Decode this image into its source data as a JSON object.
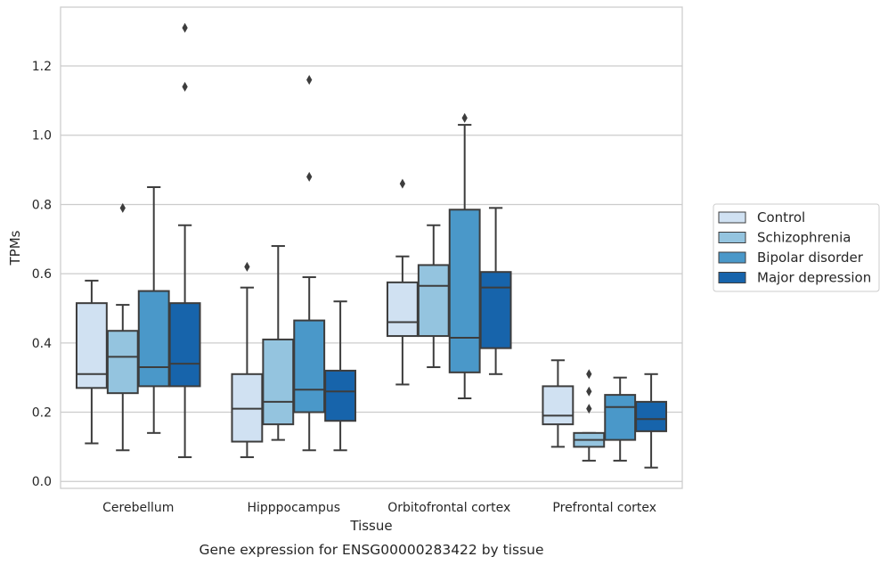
{
  "chart_data": {
    "type": "box",
    "xlabel": "Tissue",
    "ylabel": "TPMs",
    "caption": "Gene expression for ENSG00000283422 by tissue",
    "ylim": [
      -0.02,
      1.37
    ],
    "yticks": [
      0.0,
      0.2,
      0.4,
      0.6,
      0.8,
      1.0,
      1.2
    ],
    "ytick_labels": [
      "0.0",
      "0.2",
      "0.4",
      "0.6",
      "0.8",
      "1.0",
      "1.2"
    ],
    "grid": "horizontal",
    "legend_position": "right",
    "categories": [
      "Cerebellum",
      "Hipppocampus",
      "Orbitofrontal cortex",
      "Prefrontal cortex"
    ],
    "series": [
      {
        "name": "Control",
        "color": "#d0e1f2",
        "boxes": [
          {
            "whislo": 0.11,
            "q1": 0.27,
            "med": 0.31,
            "q3": 0.515,
            "whishi": 0.58,
            "fliers": []
          },
          {
            "whislo": 0.07,
            "q1": 0.115,
            "med": 0.21,
            "q3": 0.31,
            "whishi": 0.56,
            "fliers": [
              0.62
            ]
          },
          {
            "whislo": 0.28,
            "q1": 0.42,
            "med": 0.46,
            "q3": 0.575,
            "whishi": 0.65,
            "fliers": [
              0.86
            ]
          },
          {
            "whislo": 0.1,
            "q1": 0.165,
            "med": 0.19,
            "q3": 0.275,
            "whishi": 0.35,
            "fliers": []
          }
        ]
      },
      {
        "name": "Schizophrenia",
        "color": "#94c4df",
        "boxes": [
          {
            "whislo": 0.09,
            "q1": 0.255,
            "med": 0.36,
            "q3": 0.435,
            "whishi": 0.51,
            "fliers": [
              0.79
            ]
          },
          {
            "whislo": 0.12,
            "q1": 0.165,
            "med": 0.23,
            "q3": 0.41,
            "whishi": 0.68,
            "fliers": []
          },
          {
            "whislo": 0.33,
            "q1": 0.42,
            "med": 0.565,
            "q3": 0.625,
            "whishi": 0.74,
            "fliers": []
          },
          {
            "whislo": 0.06,
            "q1": 0.1,
            "med": 0.12,
            "q3": 0.14,
            "whishi": 0.14,
            "fliers": [
              0.21,
              0.26,
              0.31
            ]
          }
        ]
      },
      {
        "name": "Bipolar disorder",
        "color": "#4a98c9",
        "boxes": [
          {
            "whislo": 0.14,
            "q1": 0.275,
            "med": 0.33,
            "q3": 0.55,
            "whishi": 0.85,
            "fliers": []
          },
          {
            "whislo": 0.09,
            "q1": 0.2,
            "med": 0.265,
            "q3": 0.465,
            "whishi": 0.59,
            "fliers": [
              0.88,
              1.16
            ]
          },
          {
            "whislo": 0.24,
            "q1": 0.315,
            "med": 0.415,
            "q3": 0.785,
            "whishi": 1.03,
            "fliers": [
              1.05
            ]
          },
          {
            "whislo": 0.06,
            "q1": 0.12,
            "med": 0.215,
            "q3": 0.25,
            "whishi": 0.3,
            "fliers": []
          }
        ]
      },
      {
        "name": "Major depression",
        "color": "#1764ab",
        "boxes": [
          {
            "whislo": 0.07,
            "q1": 0.275,
            "med": 0.34,
            "q3": 0.515,
            "whishi": 0.74,
            "fliers": [
              1.14,
              1.31
            ]
          },
          {
            "whislo": 0.09,
            "q1": 0.175,
            "med": 0.26,
            "q3": 0.32,
            "whishi": 0.52,
            "fliers": []
          },
          {
            "whislo": 0.31,
            "q1": 0.385,
            "med": 0.56,
            "q3": 0.605,
            "whishi": 0.79,
            "fliers": []
          },
          {
            "whislo": 0.04,
            "q1": 0.145,
            "med": 0.18,
            "q3": 0.23,
            "whishi": 0.31,
            "fliers": []
          }
        ]
      }
    ]
  }
}
